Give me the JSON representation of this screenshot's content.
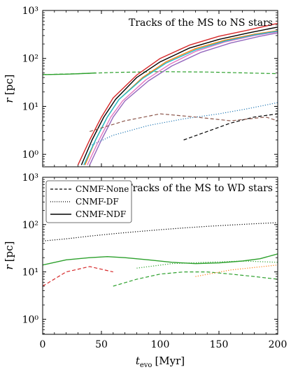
{
  "chart_data": [
    {
      "type": "line",
      "title": "Tracks of the MS to NS stars",
      "ylabel": "r [pc]",
      "xlabel": "",
      "xlim": [
        0,
        200
      ],
      "ylim": [
        0.55,
        1000
      ],
      "yscale": "log",
      "xticks": [
        "0",
        "50",
        "100",
        "150",
        "200"
      ],
      "yticks": [
        {
          "value": 1,
          "label": "10⁰"
        },
        {
          "value": 10,
          "label": "10¹"
        },
        {
          "value": 100,
          "label": "10²"
        },
        {
          "value": 1000,
          "label": "10³"
        }
      ],
      "grid": false,
      "series": [
        {
          "style": "dashed",
          "color": "#2ca02c",
          "x": [
            0,
            30,
            60,
            100,
            140,
            170,
            200
          ],
          "y": [
            46,
            48,
            51,
            53,
            52,
            50,
            48
          ]
        },
        {
          "style": "solid",
          "color": "#2ca02c",
          "x": [
            0,
            20,
            40,
            45
          ],
          "y": [
            46,
            47,
            49,
            50
          ]
        },
        {
          "style": "solid",
          "color": "#d62728",
          "x": [
            30,
            40,
            50,
            60,
            80,
            100,
            125,
            150,
            175,
            200
          ],
          "y": [
            0.6,
            2,
            6,
            15,
            45,
            100,
            190,
            290,
            390,
            540
          ]
        },
        {
          "style": "solid",
          "color": "#000000",
          "x": [
            33,
            42,
            52,
            62,
            80,
            100,
            125,
            150,
            175,
            200
          ],
          "y": [
            0.6,
            2,
            6,
            14,
            40,
            85,
            165,
            250,
            340,
            450
          ]
        },
        {
          "style": "solid",
          "color": "#ff7f0e",
          "x": [
            36,
            45,
            55,
            65,
            85,
            105,
            130,
            155,
            180,
            200
          ],
          "y": [
            0.6,
            2,
            6,
            14,
            40,
            85,
            160,
            240,
            320,
            380
          ]
        },
        {
          "style": "solid",
          "color": "#e377c2",
          "x": [
            38,
            48,
            58,
            68,
            88,
            108,
            130,
            155,
            180,
            200
          ],
          "y": [
            0.6,
            2,
            6,
            13,
            36,
            75,
            140,
            220,
            300,
            360
          ]
        },
        {
          "style": "solid",
          "color": "#9467bd",
          "x": [
            40,
            50,
            60,
            70,
            90,
            110,
            135,
            160,
            185,
            200
          ],
          "y": [
            0.6,
            2,
            6,
            13,
            34,
            70,
            135,
            210,
            290,
            340
          ]
        },
        {
          "style": "solid",
          "color": "#17becf",
          "x": [
            35,
            45,
            55,
            65,
            85,
            105,
            130,
            155,
            180,
            200
          ],
          "y": [
            0.6,
            2,
            6,
            14,
            38,
            80,
            150,
            230,
            310,
            370
          ]
        },
        {
          "style": "dotted",
          "color": "#1f77b4",
          "x": [
            40,
            60,
            90,
            120,
            150,
            175,
            200
          ],
          "y": [
            1.5,
            2.5,
            4,
            5.5,
            7,
            9,
            12
          ]
        },
        {
          "style": "dashed",
          "color": "#000000",
          "x": [
            120,
            140,
            160,
            180,
            200
          ],
          "y": [
            2,
            3,
            4.5,
            6,
            7
          ]
        },
        {
          "style": "dashed",
          "color": "#8c564b",
          "x": [
            40,
            70,
            100,
            130,
            160,
            190,
            200
          ],
          "y": [
            3,
            5,
            7,
            6,
            5,
            6,
            5
          ]
        }
      ]
    },
    {
      "type": "line",
      "title": "Tracks of the MS to WD stars",
      "ylabel": "r [pc]",
      "xlabel": "t_evo [Myr]",
      "xlim": [
        0,
        200
      ],
      "ylim": [
        0.48,
        1000
      ],
      "yscale": "log",
      "xticks": [
        "0",
        "50",
        "100",
        "150",
        "200"
      ],
      "yticks": [
        {
          "value": 1,
          "label": "10⁰"
        },
        {
          "value": 10,
          "label": "10¹"
        },
        {
          "value": 100,
          "label": "10²"
        },
        {
          "value": 1000,
          "label": "10³"
        }
      ],
      "legend": {
        "position": "top-left",
        "entries": [
          {
            "label": "CNMF-None",
            "style": "dashed"
          },
          {
            "label": "CNMF-DF",
            "style": "dotted"
          },
          {
            "label": "CNMF-NDF",
            "style": "solid"
          }
        ]
      },
      "grid": false,
      "series": [
        {
          "style": "dotted",
          "color": "#000000",
          "x": [
            0,
            20,
            40,
            60,
            80,
            100,
            120,
            140,
            160,
            180,
            200
          ],
          "y": [
            45,
            50,
            57,
            64,
            71,
            78,
            85,
            92,
            98,
            104,
            110
          ]
        },
        {
          "style": "solid",
          "color": "#2ca02c",
          "x": [
            0,
            20,
            40,
            55,
            70,
            90,
            110,
            130,
            150,
            170,
            185,
            200
          ],
          "y": [
            14,
            18,
            20,
            21,
            20,
            18,
            16,
            15,
            15.5,
            17,
            19,
            24
          ]
        },
        {
          "style": "dashed",
          "color": "#2ca02c",
          "x": [
            60,
            80,
            100,
            120,
            140,
            160,
            180,
            200
          ],
          "y": [
            5,
            7,
            9,
            10,
            10,
            9,
            8,
            7
          ]
        },
        {
          "style": "dashed",
          "color": "#d62728",
          "x": [
            0,
            20,
            40,
            60
          ],
          "y": [
            5,
            10,
            13,
            10
          ]
        },
        {
          "style": "dotted",
          "color": "#2ca02c",
          "x": [
            80,
            110,
            140,
            170,
            200
          ],
          "y": [
            12,
            15,
            16,
            17,
            16
          ]
        },
        {
          "style": "dotted",
          "color": "#ff7f0e",
          "x": [
            130,
            160,
            200
          ],
          "y": [
            8,
            11,
            14
          ]
        }
      ]
    }
  ]
}
